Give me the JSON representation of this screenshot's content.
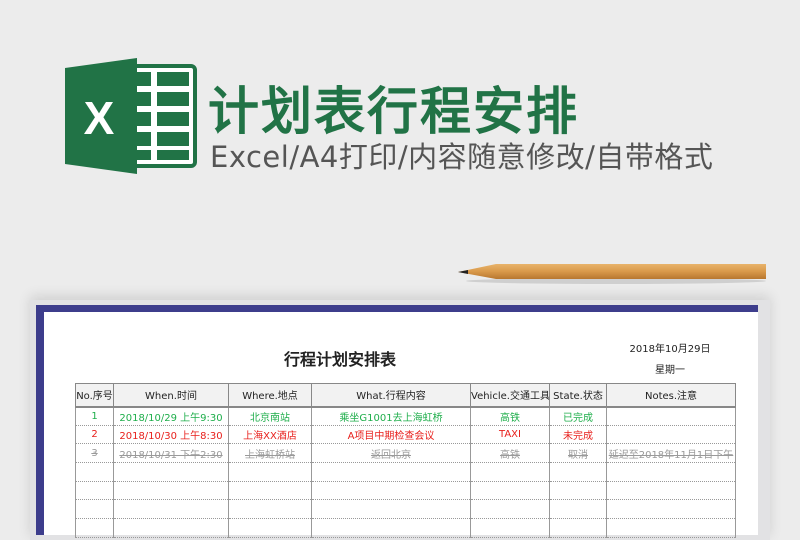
{
  "banner": {
    "title": "计划表行程安排",
    "subtitle": "Excel/A4打印/内容随意修改/自带格式",
    "logo_letter": "X",
    "brand_color": "#217346"
  },
  "sheet": {
    "title": "行程计划安排表",
    "date": "2018年10月29日",
    "weekday": "星期一",
    "columns": [
      "No.序号",
      "When.时间",
      "Where.地点",
      "What.行程内容",
      "Vehicle.交通工具",
      "State.状态",
      "Notes.注意"
    ],
    "rows": [
      {
        "no": "1",
        "when": "2018/10/29  上午9:30",
        "where": "北京南站",
        "what": "乘坐G1001去上海虹桥",
        "vehicle": "高铁",
        "state": "已完成",
        "notes": "",
        "status_color": "#1fae4b"
      },
      {
        "no": "2",
        "when": "2018/10/30  上午8:30",
        "where": "上海XX酒店",
        "what": "A项目中期检查会议",
        "vehicle": "TAXI",
        "state": "未完成",
        "notes": "",
        "status_color": "#e8201c"
      },
      {
        "no": "3",
        "when": "2018/10/31  下午2:30",
        "where": "上海虹桥站",
        "what": "返回北京",
        "vehicle": "高铁",
        "state": "取消",
        "notes": "延迟至2018年11月1日下午",
        "status_color": "#9a9a9a"
      }
    ]
  }
}
